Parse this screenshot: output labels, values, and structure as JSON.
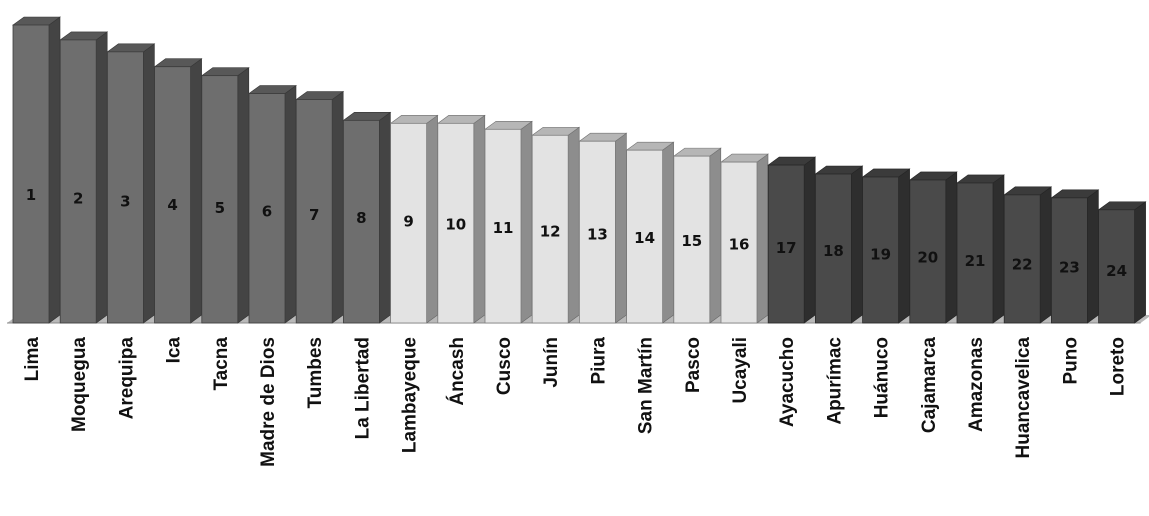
{
  "chart_data": {
    "type": "bar",
    "title": "",
    "xlabel": "",
    "ylabel": "",
    "ylim": [
      0,
      100
    ],
    "grid": false,
    "legend": "none",
    "categories": [
      "Lima",
      "Moquegua",
      "Arequipa",
      "Ica",
      "Tacna",
      "Madre de Dios",
      "Tumbes",
      "La Libertad",
      "Lambayeque",
      "Áncash",
      "Cusco",
      "Junín",
      "Piura",
      "San Martín",
      "Pasco",
      "Ucayali",
      "Ayacucho",
      "Apurímac",
      "Huánuco",
      "Cajamarca",
      "Amazonas",
      "Huancavelica",
      "Puno",
      "Loreto"
    ],
    "rank_labels": [
      "1",
      "2",
      "3",
      "4",
      "5",
      "6",
      "7",
      "8",
      "9",
      "10",
      "11",
      "12",
      "13",
      "14",
      "15",
      "16",
      "17",
      "18",
      "19",
      "20",
      "21",
      "22",
      "23",
      "24"
    ],
    "values": [
      100,
      95,
      91,
      86,
      83,
      77,
      75,
      68,
      67,
      67,
      65,
      63,
      61,
      58,
      56,
      54,
      53,
      50,
      49,
      48,
      47,
      43,
      42,
      38
    ],
    "groups": [
      0,
      0,
      0,
      0,
      0,
      0,
      0,
      0,
      1,
      1,
      1,
      1,
      1,
      1,
      1,
      1,
      2,
      2,
      2,
      2,
      2,
      2,
      2,
      2
    ],
    "colors": {
      "group_0": "#6e6e6e",
      "group_1": "#e3e3e3",
      "group_2": "#4a4a4a",
      "floor": "#b9b9b9"
    }
  }
}
